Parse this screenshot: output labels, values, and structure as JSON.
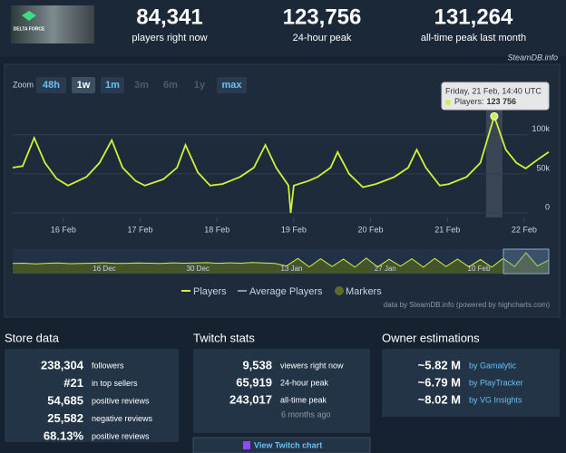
{
  "header": {
    "game_logo_text": "DELTA FORCE",
    "stats": [
      {
        "value": "84,341",
        "label": "players right now"
      },
      {
        "value": "123,756",
        "label": "24-hour peak"
      },
      {
        "value": "131,264",
        "label": "all-time peak last month"
      }
    ],
    "brand": "SteamDB.info"
  },
  "chart_data": {
    "type": "line",
    "zoom": {
      "label": "Zoom",
      "options": [
        "48h",
        "1w",
        "1m",
        "3m",
        "6m",
        "1y",
        "max"
      ],
      "selected_index": 1,
      "disabled": [
        3,
        4,
        5
      ]
    },
    "x": [
      15.34,
      15.47,
      15.62,
      15.76,
      15.91,
      16.06,
      16.3,
      16.47,
      16.63,
      16.77,
      16.94,
      17.06,
      17.3,
      17.48,
      17.59,
      17.75,
      17.91,
      18.07,
      18.3,
      18.48,
      18.63,
      18.77,
      18.93,
      18.96,
      19.0,
      19.19,
      19.31,
      19.48,
      19.57,
      19.72,
      19.9,
      20.07,
      20.31,
      20.49,
      20.6,
      20.72,
      20.9,
      21.02,
      21.25,
      21.43,
      21.61,
      21.76,
      21.9,
      22.02,
      22.2,
      22.32
    ],
    "series": [
      {
        "name": "Players",
        "color": "#d2f13b",
        "values": [
          58000,
          60000,
          96000,
          64000,
          44000,
          35000,
          46000,
          64000,
          93000,
          58000,
          41000,
          35000,
          43000,
          58000,
          87000,
          52000,
          35000,
          37000,
          46000,
          58000,
          87000,
          58000,
          35000,
          0,
          35000,
          41000,
          46000,
          58000,
          78000,
          50000,
          33000,
          37000,
          46000,
          58000,
          81000,
          58000,
          35000,
          37000,
          46000,
          64000,
          123756,
          81000,
          64000,
          57000,
          70000,
          78000
        ]
      }
    ],
    "xlim": [
      15.34,
      22.32
    ],
    "xticks": [
      {
        "value": 16,
        "label": "16 Feb"
      },
      {
        "value": 17,
        "label": "17 Feb"
      },
      {
        "value": 18,
        "label": "18 Feb"
      },
      {
        "value": 19,
        "label": "19 Feb"
      },
      {
        "value": 20,
        "label": "20 Feb"
      },
      {
        "value": 21,
        "label": "21 Feb"
      },
      {
        "value": 22,
        "label": "22 Feb"
      }
    ],
    "ylim": [
      0,
      145000
    ],
    "yticks": [
      0,
      {
        "value": 50000,
        "label": "50k"
      },
      {
        "value": 100000,
        "label": "100k"
      }
    ],
    "grid": true,
    "highlight_x": 21.61,
    "tooltip": {
      "title": "Friday, 21 Feb, 14:40 UTC",
      "label": "Players:",
      "value": "123 756"
    },
    "navigator": {
      "x_labels": [
        "16 Dec",
        "30 Dec",
        "13 Jan",
        "27 Jan",
        "10 Feb"
      ],
      "values": [
        60000,
        62000,
        58000,
        61000,
        63000,
        59000,
        60000,
        62000,
        64000,
        60000,
        61000,
        63000,
        62000,
        60000,
        64000,
        62000,
        63000,
        65000,
        61000,
        64000,
        62000,
        66000,
        63000,
        60000,
        45000,
        90000,
        40000,
        88000,
        42000,
        86000,
        38000,
        92000,
        40000,
        85000,
        44000,
        88000,
        38000,
        90000,
        42000,
        86000,
        40000,
        84000,
        38000,
        90000,
        42000,
        124000,
        45000,
        80000
      ]
    },
    "legend_extra": [
      {
        "name": "Average Players",
        "color": "#8f98a0"
      },
      {
        "name": "Markers",
        "color": "#5c6b2e"
      }
    ],
    "credit": "data by SteamDB.info (powered by highcharts.com)"
  },
  "store": {
    "title": "Store data",
    "rows": [
      [
        "238,304",
        "followers"
      ],
      [
        "#21",
        "in top sellers"
      ],
      [
        "54,685",
        "positive reviews"
      ],
      [
        "25,582",
        "negative reviews"
      ],
      [
        "68.13%",
        "positive reviews"
      ]
    ]
  },
  "twitch": {
    "title": "Twitch stats",
    "rows": [
      [
        "9,538",
        "viewers right now"
      ],
      [
        "65,919",
        "24-hour peak"
      ],
      [
        "243,017",
        "all-time peak"
      ]
    ],
    "note": "6 months ago",
    "button": "View Twitch chart"
  },
  "owners": {
    "title": "Owner estimations",
    "rows": [
      [
        "~5.82 M",
        "by Gamalytic"
      ],
      [
        "~6.79 M",
        "by PlayTracker"
      ],
      [
        "~8.02 M",
        "by VG Insights"
      ]
    ]
  }
}
